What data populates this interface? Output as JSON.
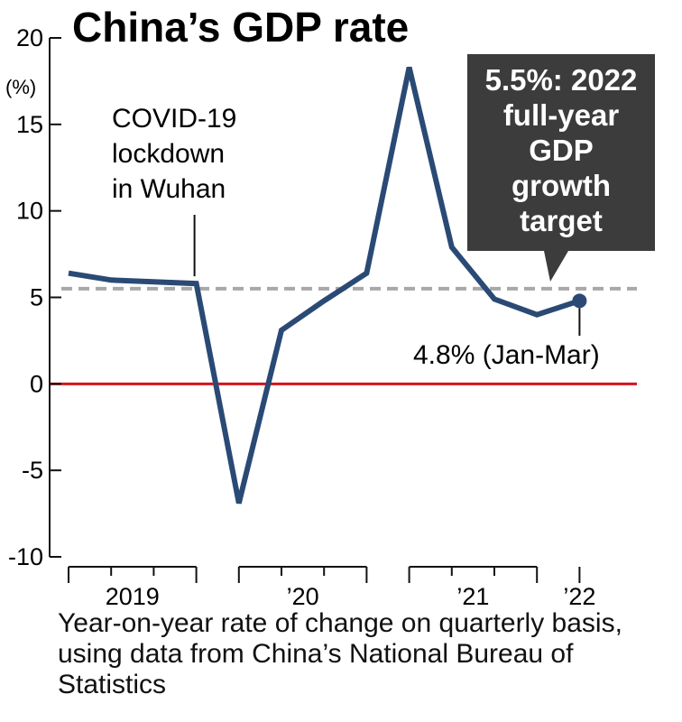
{
  "chart_data": {
    "type": "line",
    "title": "China’s GDP rate",
    "unit_label": "(%)",
    "ylim": [
      -10,
      20
    ],
    "yticks": [
      20,
      15,
      10,
      5,
      0,
      -5,
      -10
    ],
    "year_labels": [
      "2019",
      "’20",
      "’21",
      "’22"
    ],
    "quarters": [
      "2019Q1",
      "2019Q2",
      "2019Q3",
      "2019Q4",
      "2020Q1",
      "2020Q2",
      "2020Q3",
      "2020Q4",
      "2021Q1",
      "2021Q2",
      "2021Q3",
      "2021Q4",
      "2022Q1"
    ],
    "series": [
      {
        "values": [
          6.4,
          6.0,
          5.9,
          5.8,
          -6.9,
          3.1,
          4.8,
          6.4,
          18.3,
          7.9,
          4.9,
          4.0,
          4.8
        ],
        "color": "#2a4a75"
      }
    ],
    "target_line": {
      "value": 5.5,
      "color": "#a8a8a8"
    },
    "zero_line_color": "#d8121d",
    "annotations": {
      "lockdown": [
        "COVID-19",
        "lockdown",
        "in Wuhan"
      ],
      "target_callout": [
        "5.5%: 2022",
        "full-year",
        "GDP",
        "growth",
        "target"
      ],
      "latest": "4.8% (Jan-Mar)"
    }
  },
  "caption": "Year-on-year rate of change on quarterly basis, using data from China’s National Bureau of Statistics"
}
